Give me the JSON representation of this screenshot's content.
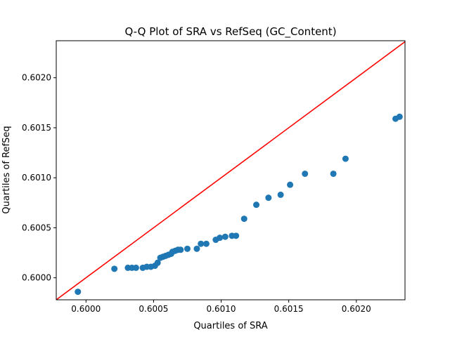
{
  "chart_data": {
    "type": "scatter",
    "title": "Q-Q Plot of SRA vs RefSeq (GC_Content)",
    "xlabel": "Quartiles of SRA",
    "ylabel": "Quartiles of RefSeq",
    "xlim": [
      0.59978,
      0.60236
    ],
    "ylim": [
      0.59978,
      0.60237
    ],
    "xticks": [
      0.6,
      0.6005,
      0.601,
      0.6015,
      0.602
    ],
    "xtick_labels": [
      "0.6000",
      "0.6005",
      "0.6010",
      "0.6015",
      "0.6020"
    ],
    "yticks": [
      0.6,
      0.6005,
      0.601,
      0.6015,
      0.602
    ],
    "ytick_labels": [
      "0.6000",
      "0.6005",
      "0.6010",
      "0.6015",
      "0.6020"
    ],
    "grid": false,
    "point_color": "#1f77b4",
    "reference_line": {
      "color": "#ff0000",
      "from": [
        0.59978,
        0.59978
      ],
      "to": [
        0.60236,
        0.60236
      ]
    },
    "points": [
      {
        "x": 0.59994,
        "y": 0.59986
      },
      {
        "x": 0.60021,
        "y": 0.60009
      },
      {
        "x": 0.60031,
        "y": 0.6001
      },
      {
        "x": 0.60034,
        "y": 0.6001
      },
      {
        "x": 0.60037,
        "y": 0.6001
      },
      {
        "x": 0.60042,
        "y": 0.6001
      },
      {
        "x": 0.60045,
        "y": 0.60011
      },
      {
        "x": 0.60048,
        "y": 0.60011
      },
      {
        "x": 0.60051,
        "y": 0.60012
      },
      {
        "x": 0.60053,
        "y": 0.60015
      },
      {
        "x": 0.60055,
        "y": 0.6002
      },
      {
        "x": 0.60057,
        "y": 0.60021
      },
      {
        "x": 0.60059,
        "y": 0.60022
      },
      {
        "x": 0.60061,
        "y": 0.60023
      },
      {
        "x": 0.60063,
        "y": 0.60024
      },
      {
        "x": 0.60064,
        "y": 0.60026
      },
      {
        "x": 0.60066,
        "y": 0.60027
      },
      {
        "x": 0.60068,
        "y": 0.60028
      },
      {
        "x": 0.6007,
        "y": 0.60028
      },
      {
        "x": 0.60075,
        "y": 0.60029
      },
      {
        "x": 0.60082,
        "y": 0.60029
      },
      {
        "x": 0.60085,
        "y": 0.60034
      },
      {
        "x": 0.60089,
        "y": 0.60034
      },
      {
        "x": 0.60096,
        "y": 0.60038
      },
      {
        "x": 0.60099,
        "y": 0.6004
      },
      {
        "x": 0.60103,
        "y": 0.60041
      },
      {
        "x": 0.60108,
        "y": 0.60042
      },
      {
        "x": 0.60111,
        "y": 0.60042
      },
      {
        "x": 0.60117,
        "y": 0.60059
      },
      {
        "x": 0.60126,
        "y": 0.60073
      },
      {
        "x": 0.60135,
        "y": 0.6008
      },
      {
        "x": 0.60144,
        "y": 0.60083
      },
      {
        "x": 0.60151,
        "y": 0.60093
      },
      {
        "x": 0.60162,
        "y": 0.60104
      },
      {
        "x": 0.60183,
        "y": 0.60104
      },
      {
        "x": 0.60192,
        "y": 0.60119
      },
      {
        "x": 0.60229,
        "y": 0.60159
      },
      {
        "x": 0.60232,
        "y": 0.60161
      }
    ]
  }
}
